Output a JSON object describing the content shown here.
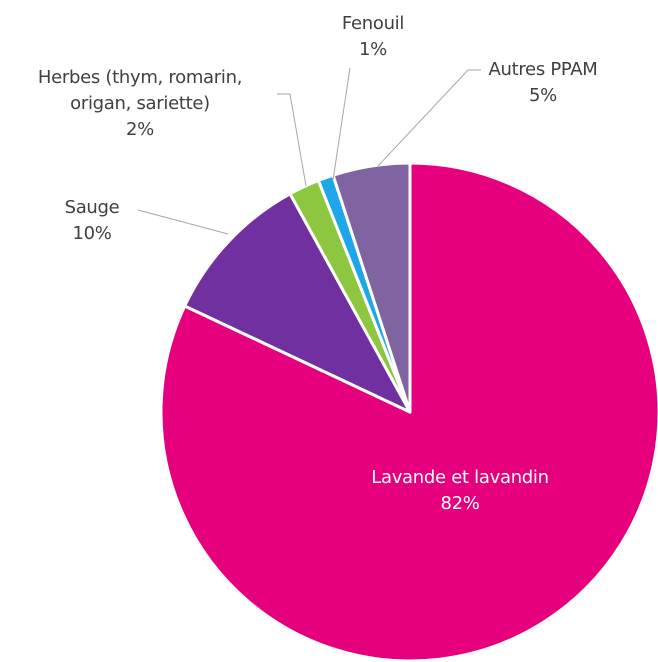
{
  "chart_data": {
    "type": "pie",
    "categories": [
      "Lavande et lavandin",
      "Sauge",
      "Herbes (thym, romarin, origan, sariette)",
      "Fenouil",
      "Autres PPAM"
    ],
    "values": [
      82,
      10,
      2,
      1,
      5
    ],
    "value_labels": [
      "82%",
      "10%",
      "2%",
      "1%",
      "5%"
    ],
    "colors": [
      "#e6007e",
      "#7030a0",
      "#8dc63f",
      "#1ea7e8",
      "#8064a2"
    ]
  }
}
